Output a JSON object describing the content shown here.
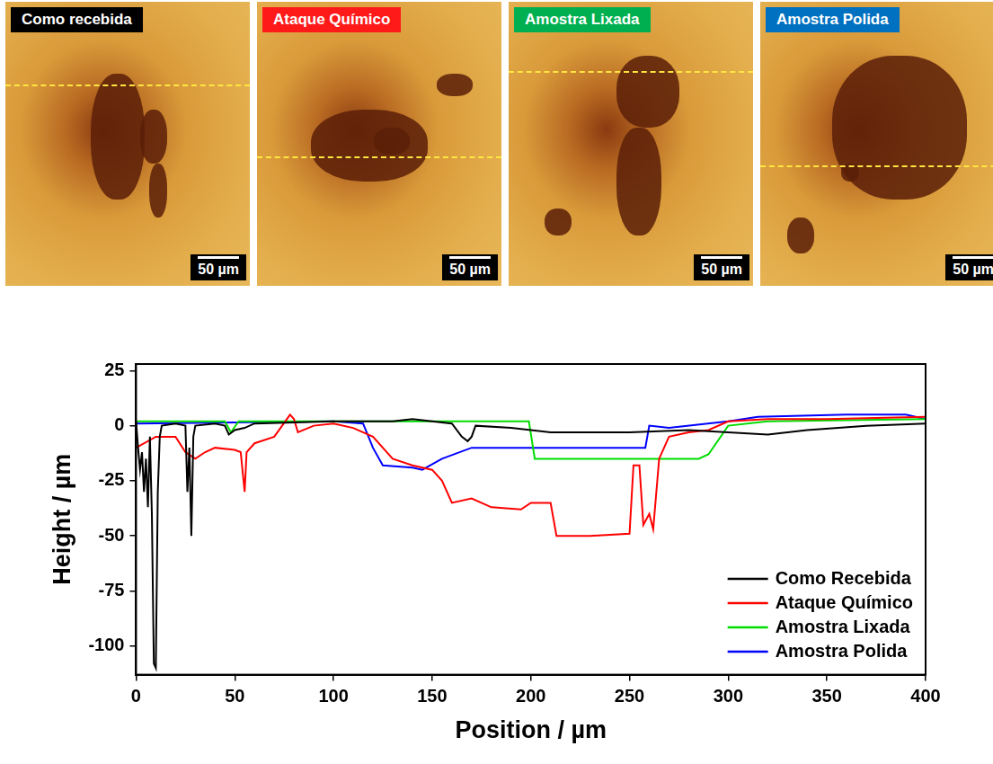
{
  "panels": [
    {
      "label": "Como recebida",
      "color": "#000000",
      "scale_bar": "50 µm"
    },
    {
      "label": "Ataque Químico",
      "color": "#ff1a1a",
      "scale_bar": "50 µm"
    },
    {
      "label": "Amostra Lixada",
      "color": "#00b050",
      "scale_bar": "50 µm"
    },
    {
      "label": "Amostra Polida",
      "color": "#0070c0",
      "scale_bar": "50 µm"
    }
  ],
  "chart_data": {
    "type": "line",
    "xlabel": "Position / µm",
    "ylabel": "Height / µm",
    "xlim": [
      0,
      400
    ],
    "xticks": [
      0,
      50,
      100,
      150,
      200,
      250,
      300,
      350,
      400
    ],
    "ylim": [
      -113,
      28
    ],
    "yticks": [
      -100,
      -75,
      -50,
      -25,
      0,
      25
    ],
    "grid": false,
    "legend": "lower right",
    "series": [
      {
        "name": "Como Recebida",
        "color": "#000000",
        "x": [
          0,
          1,
          2,
          3,
          4,
          5,
          6,
          7,
          8,
          9,
          10,
          11,
          12,
          13,
          20,
          25,
          26,
          27,
          28,
          29,
          30,
          40,
          45,
          47,
          50,
          55,
          60,
          100,
          130,
          140,
          160,
          165,
          168,
          170,
          172,
          190,
          210,
          250,
          280,
          300,
          320,
          340,
          370,
          400
        ],
        "values": [
          2,
          -10,
          -20,
          -12,
          -30,
          -15,
          -37,
          -5,
          -40,
          -108,
          -110,
          -30,
          -5,
          0,
          1,
          0,
          -30,
          -10,
          -50,
          -5,
          0,
          1,
          0,
          -4,
          -2,
          -1,
          1,
          2,
          2,
          3,
          1,
          -5,
          -7,
          -5,
          0,
          -1,
          -3,
          -3,
          -2,
          -3,
          -4,
          -2,
          0,
          1
        ]
      },
      {
        "name": "Ataque Químico",
        "color": "#ff0000",
        "x": [
          0,
          10,
          20,
          25,
          30,
          35,
          40,
          50,
          53,
          55,
          56,
          60,
          70,
          78,
          80,
          82,
          90,
          100,
          110,
          120,
          130,
          140,
          150,
          155,
          160,
          170,
          180,
          195,
          200,
          210,
          213,
          230,
          250,
          252,
          255,
          257,
          260,
          262,
          265,
          270,
          280,
          290,
          300,
          320,
          350,
          400
        ],
        "values": [
          -10,
          -5,
          -5,
          -12,
          -15,
          -12,
          -10,
          -11,
          -12,
          -30,
          -12,
          -8,
          -5,
          5,
          3,
          -3,
          0,
          1,
          -1,
          -5,
          -15,
          -18,
          -20,
          -25,
          -35,
          -33,
          -37,
          -38,
          -35,
          -35,
          -50,
          -50,
          -49,
          -18,
          -18,
          -45,
          -40,
          -47,
          -15,
          -5,
          -3,
          -2,
          2,
          3,
          3,
          4
        ]
      },
      {
        "name": "Amostra Lixada",
        "color": "#00dd00",
        "x": [
          0,
          45,
          48,
          52,
          100,
          150,
          199,
          202,
          240,
          285,
          290,
          300,
          320,
          400
        ],
        "values": [
          2,
          2,
          -3,
          2,
          2,
          2,
          2,
          -15,
          -15,
          -15,
          -13,
          0,
          2,
          3
        ]
      },
      {
        "name": "Amostra Polida",
        "color": "#0000ff",
        "x": [
          0,
          100,
          115,
          120,
          125,
          140,
          145,
          155,
          170,
          200,
          258,
          260,
          270,
          300,
          315,
          360,
          390,
          400
        ],
        "values": [
          1,
          2,
          1,
          -10,
          -18,
          -19,
          -20,
          -15,
          -10,
          -10,
          -10,
          0,
          -1,
          2,
          4,
          5,
          5,
          3
        ]
      }
    ]
  }
}
